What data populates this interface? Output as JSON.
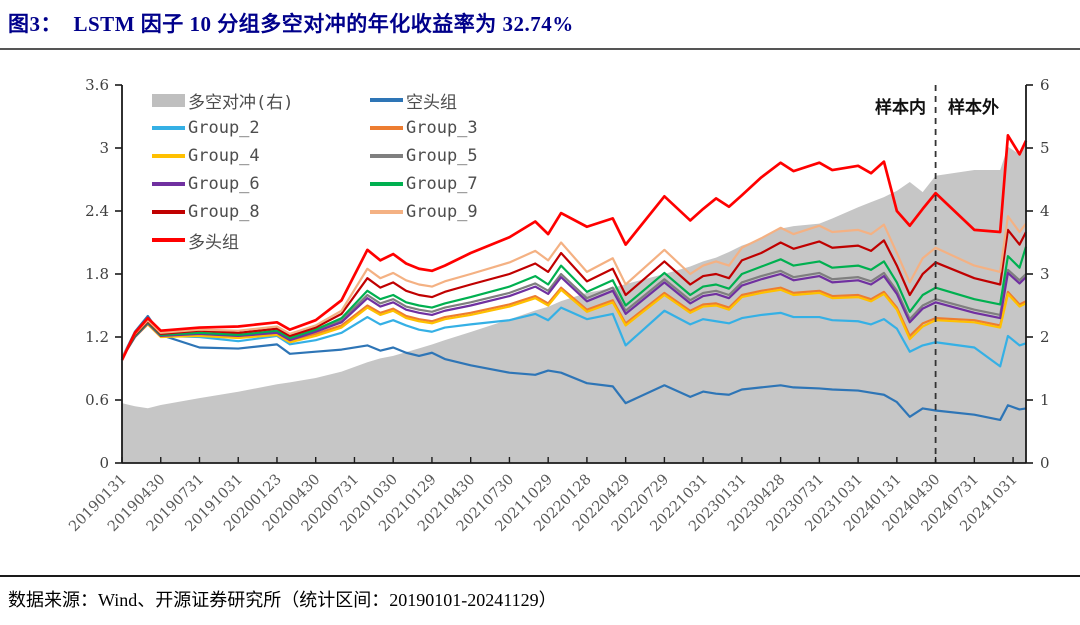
{
  "header": {
    "title": "图3：  LSTM 因子 10 分组多空对冲的年化收益率为 32.74%"
  },
  "footer": {
    "source_text": "数据来源：Wind、开源证券研究所（统计区间：20190101-20241129）"
  },
  "chart_data": {
    "type": "line",
    "title": "LSTM 因子 10 分组多空对冲净值（2019-01 至 2024-11）",
    "x_axis": {
      "unit": "months_since_20190131",
      "total_months": 70,
      "tick_months": [
        0,
        3,
        6,
        9,
        12,
        15,
        18,
        21,
        24,
        27,
        30,
        33,
        36,
        39,
        42,
        45,
        48,
        51,
        54,
        57,
        60,
        63,
        66,
        69
      ],
      "tick_labels": [
        "20190131",
        "20190430",
        "20190731",
        "20191031",
        "20200123",
        "20200430",
        "20200731",
        "20201030",
        "20210129",
        "20210430",
        "20210730",
        "20211029",
        "20220128",
        "20220429",
        "20220729",
        "20221031",
        "20230131",
        "20230428",
        "20230731",
        "20231031",
        "20240131",
        "20240430",
        "20240731",
        "20241031"
      ]
    },
    "left_axis": {
      "min": 0,
      "max": 3.6,
      "tick_values": [
        0,
        0.6,
        1.2,
        1.8,
        2.4,
        3,
        3.6
      ],
      "tick_labels": [
        "0",
        "0.6",
        "1.2",
        "1.8",
        "2.4",
        "3",
        "3.6"
      ]
    },
    "right_axis": {
      "min": 0,
      "max": 6,
      "tick_values": [
        0,
        1,
        2,
        3,
        4,
        5,
        6
      ],
      "tick_labels": [
        "0",
        "1",
        "2",
        "3",
        "4",
        "5",
        "6"
      ]
    },
    "sample_split": {
      "month": 63,
      "label_left": "样本内",
      "label_right": "样本外"
    },
    "grid": false,
    "x_points": [
      0,
      1,
      2,
      3,
      6,
      9,
      12,
      13,
      15,
      17,
      19,
      20,
      21,
      22,
      23,
      24,
      25,
      27,
      30,
      32,
      33,
      34,
      36,
      38,
      39,
      42,
      44,
      45,
      46,
      47,
      48,
      49.5,
      51,
      52,
      54,
      55,
      57,
      58,
      59,
      60,
      61,
      62,
      63,
      66,
      68,
      68.6,
      69.5,
      70
    ],
    "area_series": {
      "name": "多空对冲(右)",
      "axis": "right",
      "color": "#C6C6C6",
      "values": [
        0.95,
        0.9,
        0.87,
        0.92,
        1.03,
        1.13,
        1.25,
        1.28,
        1.35,
        1.45,
        1.6,
        1.66,
        1.7,
        1.76,
        1.82,
        1.88,
        1.95,
        2.08,
        2.28,
        2.42,
        2.48,
        2.57,
        2.7,
        2.78,
        2.84,
        3.0,
        3.12,
        3.2,
        3.26,
        3.35,
        3.45,
        3.56,
        3.72,
        3.76,
        3.8,
        3.88,
        4.06,
        4.14,
        4.22,
        4.32,
        4.46,
        4.3,
        4.56,
        4.65,
        4.65,
        5.02,
        4.9,
        5.06
      ]
    },
    "line_series": [
      {
        "name": "空头组",
        "axis": "left",
        "color": "#2E75B6",
        "stroke_width": 2.2,
        "values": [
          1.0,
          1.25,
          1.4,
          1.22,
          1.1,
          1.09,
          1.13,
          1.04,
          1.06,
          1.08,
          1.12,
          1.07,
          1.1,
          1.05,
          1.02,
          1.05,
          0.99,
          0.93,
          0.86,
          0.84,
          0.88,
          0.86,
          0.76,
          0.73,
          0.57,
          0.74,
          0.63,
          0.68,
          0.66,
          0.65,
          0.7,
          0.72,
          0.74,
          0.72,
          0.71,
          0.7,
          0.69,
          0.67,
          0.65,
          0.58,
          0.44,
          0.52,
          0.5,
          0.46,
          0.41,
          0.55,
          0.51,
          0.52
        ]
      },
      {
        "name": "Group_2",
        "axis": "left",
        "color": "#35B0E5",
        "stroke_width": 2.2,
        "values": [
          1.0,
          1.22,
          1.37,
          1.21,
          1.2,
          1.16,
          1.21,
          1.13,
          1.17,
          1.24,
          1.39,
          1.32,
          1.36,
          1.31,
          1.27,
          1.25,
          1.29,
          1.32,
          1.36,
          1.42,
          1.36,
          1.48,
          1.37,
          1.42,
          1.12,
          1.45,
          1.32,
          1.37,
          1.35,
          1.33,
          1.38,
          1.41,
          1.43,
          1.39,
          1.39,
          1.36,
          1.35,
          1.32,
          1.37,
          1.28,
          1.06,
          1.12,
          1.15,
          1.1,
          0.92,
          1.21,
          1.12,
          1.14
        ]
      },
      {
        "name": "Group_3",
        "axis": "left",
        "color": "#ED7D31",
        "stroke_width": 2.2,
        "values": [
          1.0,
          1.21,
          1.33,
          1.21,
          1.22,
          1.2,
          1.24,
          1.17,
          1.23,
          1.31,
          1.5,
          1.43,
          1.47,
          1.4,
          1.37,
          1.35,
          1.39,
          1.43,
          1.51,
          1.59,
          1.52,
          1.67,
          1.46,
          1.55,
          1.33,
          1.62,
          1.45,
          1.51,
          1.52,
          1.48,
          1.6,
          1.64,
          1.67,
          1.62,
          1.64,
          1.59,
          1.6,
          1.56,
          1.63,
          1.48,
          1.21,
          1.33,
          1.38,
          1.36,
          1.31,
          1.63,
          1.51,
          1.54
        ]
      },
      {
        "name": "Group_4",
        "axis": "left",
        "color": "#FFC000",
        "stroke_width": 2.2,
        "values": [
          1.0,
          1.2,
          1.32,
          1.2,
          1.21,
          1.19,
          1.22,
          1.15,
          1.21,
          1.29,
          1.48,
          1.41,
          1.45,
          1.38,
          1.35,
          1.33,
          1.37,
          1.41,
          1.49,
          1.57,
          1.5,
          1.65,
          1.44,
          1.53,
          1.31,
          1.6,
          1.43,
          1.49,
          1.5,
          1.46,
          1.58,
          1.62,
          1.65,
          1.6,
          1.62,
          1.57,
          1.58,
          1.54,
          1.61,
          1.46,
          1.18,
          1.3,
          1.36,
          1.34,
          1.29,
          1.61,
          1.49,
          1.52
        ]
      },
      {
        "name": "Group_5",
        "axis": "left",
        "color": "#7F7F7F",
        "stroke_width": 2.2,
        "values": [
          1.0,
          1.21,
          1.34,
          1.22,
          1.24,
          1.22,
          1.25,
          1.18,
          1.26,
          1.36,
          1.6,
          1.52,
          1.56,
          1.49,
          1.46,
          1.44,
          1.48,
          1.53,
          1.62,
          1.71,
          1.64,
          1.8,
          1.57,
          1.67,
          1.45,
          1.75,
          1.55,
          1.62,
          1.64,
          1.6,
          1.72,
          1.78,
          1.83,
          1.77,
          1.81,
          1.75,
          1.77,
          1.73,
          1.81,
          1.64,
          1.37,
          1.5,
          1.56,
          1.46,
          1.41,
          1.84,
          1.74,
          1.8
        ]
      },
      {
        "name": "Group_6",
        "axis": "left",
        "color": "#7030A0",
        "stroke_width": 2.2,
        "values": [
          1.0,
          1.2,
          1.33,
          1.21,
          1.23,
          1.21,
          1.24,
          1.17,
          1.25,
          1.34,
          1.57,
          1.49,
          1.53,
          1.46,
          1.43,
          1.41,
          1.45,
          1.5,
          1.59,
          1.68,
          1.61,
          1.77,
          1.54,
          1.64,
          1.42,
          1.72,
          1.52,
          1.59,
          1.61,
          1.57,
          1.69,
          1.75,
          1.8,
          1.74,
          1.78,
          1.72,
          1.74,
          1.7,
          1.78,
          1.61,
          1.34,
          1.47,
          1.53,
          1.43,
          1.38,
          1.81,
          1.71,
          1.77
        ]
      },
      {
        "name": "Group_7",
        "axis": "left",
        "color": "#00B050",
        "stroke_width": 2.2,
        "values": [
          1.0,
          1.21,
          1.34,
          1.22,
          1.24,
          1.22,
          1.26,
          1.19,
          1.27,
          1.38,
          1.64,
          1.56,
          1.6,
          1.53,
          1.5,
          1.48,
          1.52,
          1.58,
          1.68,
          1.78,
          1.7,
          1.88,
          1.63,
          1.74,
          1.5,
          1.81,
          1.6,
          1.68,
          1.7,
          1.66,
          1.8,
          1.87,
          1.94,
          1.88,
          1.92,
          1.86,
          1.88,
          1.84,
          1.92,
          1.72,
          1.44,
          1.6,
          1.67,
          1.56,
          1.51,
          1.97,
          1.86,
          2.06
        ]
      },
      {
        "name": "Group_8",
        "axis": "left",
        "color": "#C00000",
        "stroke_width": 2.2,
        "values": [
          1.0,
          1.22,
          1.35,
          1.23,
          1.26,
          1.24,
          1.28,
          1.21,
          1.29,
          1.42,
          1.76,
          1.67,
          1.72,
          1.64,
          1.6,
          1.58,
          1.63,
          1.7,
          1.8,
          1.9,
          1.82,
          2.0,
          1.73,
          1.85,
          1.6,
          1.92,
          1.7,
          1.78,
          1.8,
          1.76,
          1.93,
          2.0,
          2.1,
          2.04,
          2.11,
          2.05,
          2.07,
          2.02,
          2.12,
          1.88,
          1.6,
          1.8,
          1.91,
          1.76,
          1.7,
          2.22,
          2.08,
          2.2
        ]
      },
      {
        "name": "Group_9",
        "axis": "left",
        "color": "#F4B183",
        "stroke_width": 2.2,
        "values": [
          1.0,
          1.23,
          1.36,
          1.24,
          1.27,
          1.26,
          1.3,
          1.23,
          1.31,
          1.45,
          1.85,
          1.76,
          1.81,
          1.74,
          1.7,
          1.68,
          1.73,
          1.8,
          1.91,
          2.02,
          1.93,
          2.1,
          1.82,
          1.95,
          1.7,
          2.03,
          1.8,
          1.88,
          1.92,
          1.88,
          2.05,
          2.14,
          2.24,
          2.18,
          2.26,
          2.2,
          2.22,
          2.18,
          2.27,
          2.0,
          1.72,
          1.95,
          2.05,
          1.88,
          1.82,
          2.35,
          2.2,
          2.28
        ]
      },
      {
        "name": "多头组",
        "axis": "left",
        "color": "#FF0000",
        "stroke_width": 2.7,
        "values": [
          0.98,
          1.24,
          1.38,
          1.26,
          1.29,
          1.3,
          1.34,
          1.27,
          1.36,
          1.55,
          2.03,
          1.93,
          1.99,
          1.9,
          1.85,
          1.83,
          1.88,
          2.0,
          2.15,
          2.3,
          2.18,
          2.38,
          2.25,
          2.33,
          2.08,
          2.54,
          2.31,
          2.42,
          2.52,
          2.44,
          2.55,
          2.72,
          2.86,
          2.78,
          2.86,
          2.79,
          2.83,
          2.76,
          2.87,
          2.4,
          2.26,
          2.42,
          2.57,
          2.22,
          2.2,
          3.12,
          2.94,
          3.07
        ]
      }
    ],
    "legend": {
      "position": "top-left",
      "items": [
        {
          "label": "多空对冲(右)",
          "color": "#BFBFBF",
          "type": "area"
        },
        {
          "label": "空头组",
          "color": "#2E75B6",
          "type": "line"
        },
        {
          "label": "Group_2",
          "color": "#35B0E5",
          "type": "line"
        },
        {
          "label": "Group_3",
          "color": "#ED7D31",
          "type": "line"
        },
        {
          "label": "Group_4",
          "color": "#FFC000",
          "type": "line"
        },
        {
          "label": "Group_5",
          "color": "#7F7F7F",
          "type": "line"
        },
        {
          "label": "Group_6",
          "color": "#7030A0",
          "type": "line"
        },
        {
          "label": "Group_7",
          "color": "#00B050",
          "type": "line"
        },
        {
          "label": "Group_8",
          "color": "#C00000",
          "type": "line"
        },
        {
          "label": "Group_9",
          "color": "#F4B183",
          "type": "line"
        },
        {
          "label": "多头组",
          "color": "#FF0000",
          "type": "line"
        }
      ]
    }
  }
}
